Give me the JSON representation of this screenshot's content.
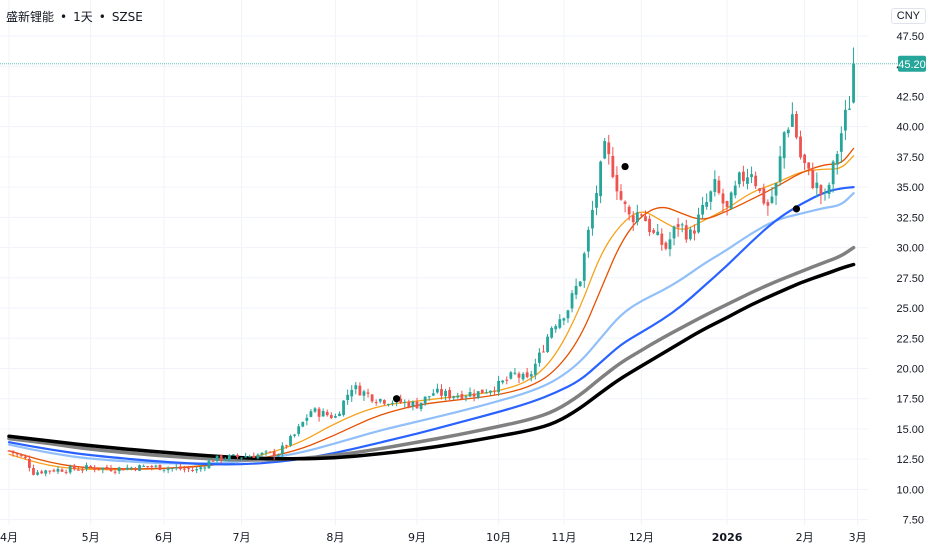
{
  "header": {
    "symbol": "盛新锂能",
    "interval": "1天",
    "exchange": "SZSE",
    "separator": "•"
  },
  "currency_button": "CNY",
  "colors": {
    "up": "#26a69a",
    "down": "#ef5350",
    "ma_orange": "#f7a21b",
    "ma_red": "#e65100",
    "ma_lightblue": "#90bff9",
    "ma_blue": "#2962ff",
    "ma_gray": "#808080",
    "ma_black": "#000000",
    "price_line": "#26a69a"
  },
  "chart_data": {
    "type": "candlestick",
    "y_ticks": [
      "47.50",
      "45.00",
      "42.50",
      "40.00",
      "37.50",
      "35.00",
      "32.50",
      "30.00",
      "27.50",
      "25.00",
      "22.50",
      "20.00",
      "17.50",
      "15.00",
      "12.50",
      "10.00",
      "7.50"
    ],
    "y_range": [
      7.5,
      47.5
    ],
    "x_ticks": [
      {
        "label": "4月",
        "index": 0
      },
      {
        "label": "5月",
        "index": 20
      },
      {
        "label": "6月",
        "index": 38
      },
      {
        "label": "7月",
        "index": 57
      },
      {
        "label": "8月",
        "index": 80
      },
      {
        "label": "9月",
        "index": 100
      },
      {
        "label": "10月",
        "index": 120
      },
      {
        "label": "11月",
        "index": 136
      },
      {
        "label": "12月",
        "index": 155
      },
      {
        "label": "2026",
        "index": 176,
        "bold": true
      },
      {
        "label": "2月",
        "index": 195
      },
      {
        "label": "3月",
        "index": 208
      }
    ],
    "last_price": "45.20",
    "last_price_value": 45.2,
    "key_points": [
      {
        "i": 0,
        "p": 13.2
      },
      {
        "i": 4,
        "p": 12.5
      },
      {
        "i": 6,
        "p": 11.4
      },
      {
        "i": 10,
        "p": 11.6
      },
      {
        "i": 16,
        "p": 11.7
      },
      {
        "i": 20,
        "p": 11.8
      },
      {
        "i": 26,
        "p": 11.7
      },
      {
        "i": 34,
        "p": 11.9
      },
      {
        "i": 46,
        "p": 11.6
      },
      {
        "i": 50,
        "p": 12.5
      },
      {
        "i": 56,
        "p": 12.7
      },
      {
        "i": 66,
        "p": 13.0
      },
      {
        "i": 70,
        "p": 14.5
      },
      {
        "i": 74,
        "p": 16.5
      },
      {
        "i": 80,
        "p": 16.0
      },
      {
        "i": 84,
        "p": 18.5
      },
      {
        "i": 90,
        "p": 17.5
      },
      {
        "i": 96,
        "p": 17.2
      },
      {
        "i": 100,
        "p": 17.0
      },
      {
        "i": 104,
        "p": 18.0
      },
      {
        "i": 108,
        "p": 17.8
      },
      {
        "i": 115,
        "p": 18.0
      },
      {
        "i": 120,
        "p": 18.6
      },
      {
        "i": 124,
        "p": 19.5
      },
      {
        "i": 127,
        "p": 19.0
      },
      {
        "i": 130,
        "p": 21.0
      },
      {
        "i": 133,
        "p": 23.5
      },
      {
        "i": 137,
        "p": 25.0
      },
      {
        "i": 140,
        "p": 27.5
      },
      {
        "i": 143,
        "p": 33.0
      },
      {
        "i": 146,
        "p": 38.0
      },
      {
        "i": 148,
        "p": 36.5
      },
      {
        "i": 150,
        "p": 34.0
      },
      {
        "i": 152,
        "p": 32.5
      },
      {
        "i": 155,
        "p": 33.0
      },
      {
        "i": 158,
        "p": 31.0
      },
      {
        "i": 161,
        "p": 30.0
      },
      {
        "i": 164,
        "p": 32.0
      },
      {
        "i": 167,
        "p": 31.0
      },
      {
        "i": 170,
        "p": 33.0
      },
      {
        "i": 173,
        "p": 35.0
      },
      {
        "i": 176,
        "p": 33.0
      },
      {
        "i": 179,
        "p": 35.5
      },
      {
        "i": 182,
        "p": 36.5
      },
      {
        "i": 184,
        "p": 34.5
      },
      {
        "i": 186,
        "p": 33.5
      },
      {
        "i": 188,
        "p": 35.0
      },
      {
        "i": 190,
        "p": 39.5
      },
      {
        "i": 192,
        "p": 41.0
      },
      {
        "i": 194,
        "p": 37.5
      },
      {
        "i": 196,
        "p": 36.0
      },
      {
        "i": 198,
        "p": 35.0
      },
      {
        "i": 200,
        "p": 34.0
      },
      {
        "i": 202,
        "p": 36.5
      },
      {
        "i": 204,
        "p": 39.5
      },
      {
        "i": 206,
        "p": 42.0
      },
      {
        "i": 207,
        "p": 45.2
      }
    ],
    "markers": [
      {
        "i": 95,
        "p": 17.5
      },
      {
        "i": 151,
        "p": 36.7
      },
      {
        "i": 193,
        "p": 33.2
      }
    ],
    "moving_averages": [
      {
        "color": "#f7a21b",
        "width": 1.3,
        "points": [
          [
            0,
            12.9
          ],
          [
            10,
            11.9
          ],
          [
            20,
            11.6
          ],
          [
            40,
            11.7
          ],
          [
            56,
            12.3
          ],
          [
            70,
            13.6
          ],
          [
            80,
            15.5
          ],
          [
            90,
            16.9
          ],
          [
            100,
            17.3
          ],
          [
            110,
            17.7
          ],
          [
            120,
            18.1
          ],
          [
            128,
            19.0
          ],
          [
            134,
            21.0
          ],
          [
            140,
            25.0
          ],
          [
            145,
            29.5
          ],
          [
            150,
            32.0
          ],
          [
            155,
            33.2
          ],
          [
            160,
            32.2
          ],
          [
            165,
            31.3
          ],
          [
            170,
            32.2
          ],
          [
            176,
            33.2
          ],
          [
            182,
            34.6
          ],
          [
            188,
            35.3
          ],
          [
            194,
            36.3
          ],
          [
            200,
            36.5
          ],
          [
            204,
            36.5
          ],
          [
            207,
            37.6
          ]
        ]
      },
      {
        "color": "#e65100",
        "width": 1.3,
        "points": [
          [
            0,
            13.2
          ],
          [
            10,
            12.2
          ],
          [
            20,
            11.7
          ],
          [
            40,
            11.7
          ],
          [
            56,
            12.2
          ],
          [
            70,
            13.1
          ],
          [
            80,
            14.5
          ],
          [
            90,
            16.1
          ],
          [
            100,
            17.0
          ],
          [
            110,
            17.4
          ],
          [
            120,
            17.8
          ],
          [
            128,
            18.5
          ],
          [
            134,
            19.8
          ],
          [
            140,
            22.5
          ],
          [
            145,
            26.5
          ],
          [
            150,
            30.5
          ],
          [
            155,
            32.7
          ],
          [
            160,
            33.5
          ],
          [
            165,
            32.8
          ],
          [
            170,
            32.2
          ],
          [
            176,
            33.0
          ],
          [
            182,
            34.0
          ],
          [
            188,
            35.0
          ],
          [
            194,
            36.2
          ],
          [
            200,
            36.9
          ],
          [
            204,
            36.9
          ],
          [
            207,
            38.2
          ]
        ]
      },
      {
        "color": "#90bff9",
        "width": 2.2,
        "points": [
          [
            0,
            13.7
          ],
          [
            10,
            13.0
          ],
          [
            20,
            12.5
          ],
          [
            40,
            12.1
          ],
          [
            56,
            12.2
          ],
          [
            70,
            12.9
          ],
          [
            80,
            13.8
          ],
          [
            90,
            14.8
          ],
          [
            100,
            15.6
          ],
          [
            110,
            16.4
          ],
          [
            120,
            17.3
          ],
          [
            128,
            18.1
          ],
          [
            134,
            19.0
          ],
          [
            140,
            20.5
          ],
          [
            145,
            22.5
          ],
          [
            150,
            24.5
          ],
          [
            155,
            25.6
          ],
          [
            160,
            26.4
          ],
          [
            165,
            27.4
          ],
          [
            170,
            28.6
          ],
          [
            176,
            29.8
          ],
          [
            182,
            31.2
          ],
          [
            188,
            32.3
          ],
          [
            194,
            32.8
          ],
          [
            200,
            33.3
          ],
          [
            204,
            33.5
          ],
          [
            207,
            34.5
          ]
        ]
      },
      {
        "color": "#2962ff",
        "width": 2.2,
        "points": [
          [
            0,
            13.9
          ],
          [
            10,
            13.3
          ],
          [
            20,
            12.8
          ],
          [
            40,
            12.2
          ],
          [
            56,
            12.0
          ],
          [
            70,
            12.4
          ],
          [
            80,
            13.0
          ],
          [
            90,
            13.8
          ],
          [
            100,
            14.6
          ],
          [
            110,
            15.5
          ],
          [
            120,
            16.4
          ],
          [
            128,
            17.2
          ],
          [
            134,
            18.0
          ],
          [
            140,
            19.0
          ],
          [
            145,
            20.5
          ],
          [
            150,
            22.0
          ],
          [
            155,
            23.0
          ],
          [
            160,
            24.0
          ],
          [
            165,
            25.2
          ],
          [
            170,
            26.7
          ],
          [
            176,
            28.5
          ],
          [
            182,
            30.5
          ],
          [
            188,
            32.3
          ],
          [
            194,
            33.6
          ],
          [
            200,
            34.6
          ],
          [
            204,
            34.9
          ],
          [
            207,
            35.0
          ]
        ]
      },
      {
        "color": "#808080",
        "width": 3.5,
        "points": [
          [
            0,
            14.2
          ],
          [
            10,
            13.8
          ],
          [
            20,
            13.3
          ],
          [
            40,
            12.7
          ],
          [
            56,
            12.4
          ],
          [
            70,
            12.5
          ],
          [
            80,
            12.8
          ],
          [
            90,
            13.3
          ],
          [
            100,
            13.9
          ],
          [
            110,
            14.5
          ],
          [
            120,
            15.2
          ],
          [
            128,
            15.8
          ],
          [
            134,
            16.5
          ],
          [
            140,
            17.8
          ],
          [
            145,
            19.2
          ],
          [
            150,
            20.5
          ],
          [
            155,
            21.5
          ],
          [
            160,
            22.5
          ],
          [
            165,
            23.4
          ],
          [
            170,
            24.3
          ],
          [
            176,
            25.3
          ],
          [
            182,
            26.3
          ],
          [
            188,
            27.2
          ],
          [
            194,
            28.0
          ],
          [
            200,
            28.8
          ],
          [
            204,
            29.3
          ],
          [
            207,
            30.0
          ]
        ]
      },
      {
        "color": "#000000",
        "width": 3.5,
        "points": [
          [
            0,
            14.4
          ],
          [
            10,
            14.0
          ],
          [
            20,
            13.6
          ],
          [
            40,
            13.0
          ],
          [
            56,
            12.6
          ],
          [
            70,
            12.5
          ],
          [
            80,
            12.6
          ],
          [
            90,
            12.9
          ],
          [
            100,
            13.3
          ],
          [
            110,
            13.8
          ],
          [
            120,
            14.4
          ],
          [
            128,
            14.9
          ],
          [
            134,
            15.5
          ],
          [
            140,
            16.7
          ],
          [
            145,
            18.0
          ],
          [
            150,
            19.2
          ],
          [
            155,
            20.2
          ],
          [
            160,
            21.2
          ],
          [
            165,
            22.2
          ],
          [
            170,
            23.2
          ],
          [
            176,
            24.2
          ],
          [
            182,
            25.3
          ],
          [
            188,
            26.2
          ],
          [
            194,
            27.1
          ],
          [
            200,
            27.8
          ],
          [
            204,
            28.3
          ],
          [
            207,
            28.6
          ]
        ]
      }
    ]
  }
}
